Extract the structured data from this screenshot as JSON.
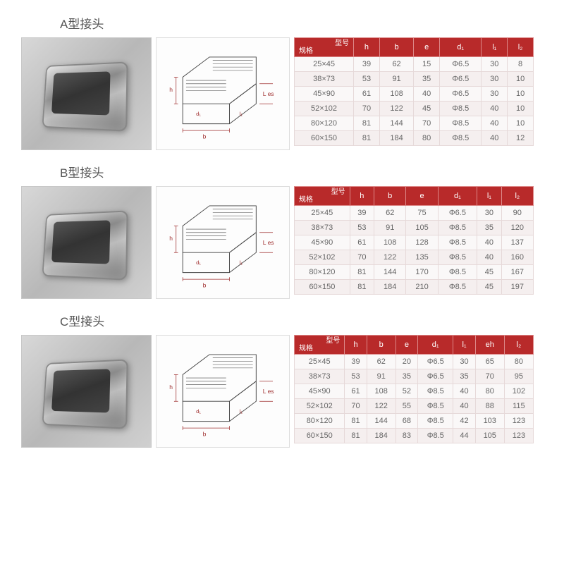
{
  "sections": [
    {
      "title": "A型接头",
      "corner_top": "型号",
      "corner_bot": "规格",
      "headers": [
        "h",
        "b",
        "e",
        "d₁",
        "l₁",
        "l₂"
      ],
      "rows": [
        [
          "25×45",
          "39",
          "62",
          "15",
          "Φ6.5",
          "30",
          "8"
        ],
        [
          "38×73",
          "53",
          "91",
          "35",
          "Φ6.5",
          "30",
          "10"
        ],
        [
          "45×90",
          "61",
          "108",
          "40",
          "Φ6.5",
          "30",
          "10"
        ],
        [
          "52×102",
          "70",
          "122",
          "45",
          "Φ8.5",
          "40",
          "10"
        ],
        [
          "80×120",
          "81",
          "144",
          "70",
          "Φ8.5",
          "40",
          "10"
        ],
        [
          "60×150",
          "81",
          "184",
          "80",
          "Φ8.5",
          "40",
          "12"
        ]
      ]
    },
    {
      "title": "B型接头",
      "corner_top": "型号",
      "corner_bot": "规格",
      "headers": [
        "h",
        "b",
        "e",
        "d₁",
        "l₁",
        "l₂"
      ],
      "rows": [
        [
          "25×45",
          "39",
          "62",
          "75",
          "Φ6.5",
          "30",
          "90"
        ],
        [
          "38×73",
          "53",
          "91",
          "105",
          "Φ8.5",
          "35",
          "120"
        ],
        [
          "45×90",
          "61",
          "108",
          "128",
          "Φ8.5",
          "40",
          "137"
        ],
        [
          "52×102",
          "70",
          "122",
          "135",
          "Φ8.5",
          "40",
          "160"
        ],
        [
          "80×120",
          "81",
          "144",
          "170",
          "Φ8.5",
          "45",
          "167"
        ],
        [
          "60×150",
          "81",
          "184",
          "210",
          "Φ8.5",
          "45",
          "197"
        ]
      ]
    },
    {
      "title": "C型接头",
      "corner_top": "型号",
      "corner_bot": "规格",
      "headers": [
        "h",
        "b",
        "e",
        "d₁",
        "l₁",
        "eh",
        "l₂"
      ],
      "rows": [
        [
          "25×45",
          "39",
          "62",
          "20",
          "Φ6.5",
          "30",
          "65",
          "80"
        ],
        [
          "38×73",
          "53",
          "91",
          "35",
          "Φ6.5",
          "35",
          "70",
          "95"
        ],
        [
          "45×90",
          "61",
          "108",
          "52",
          "Φ8.5",
          "40",
          "80",
          "102"
        ],
        [
          "52×102",
          "70",
          "122",
          "55",
          "Φ8.5",
          "40",
          "88",
          "115"
        ],
        [
          "80×120",
          "81",
          "144",
          "68",
          "Φ8.5",
          "42",
          "103",
          "123"
        ],
        [
          "60×150",
          "81",
          "184",
          "83",
          "Φ8.5",
          "44",
          "105",
          "123"
        ]
      ]
    }
  ],
  "colors": {
    "header_bg": "#b82a2a",
    "header_text": "#ffffff",
    "cell_border": "#e6d9d9",
    "cell_bg": "#faf8f8",
    "cell_bg_alt": "#f5efef",
    "title_color": "#555555"
  }
}
